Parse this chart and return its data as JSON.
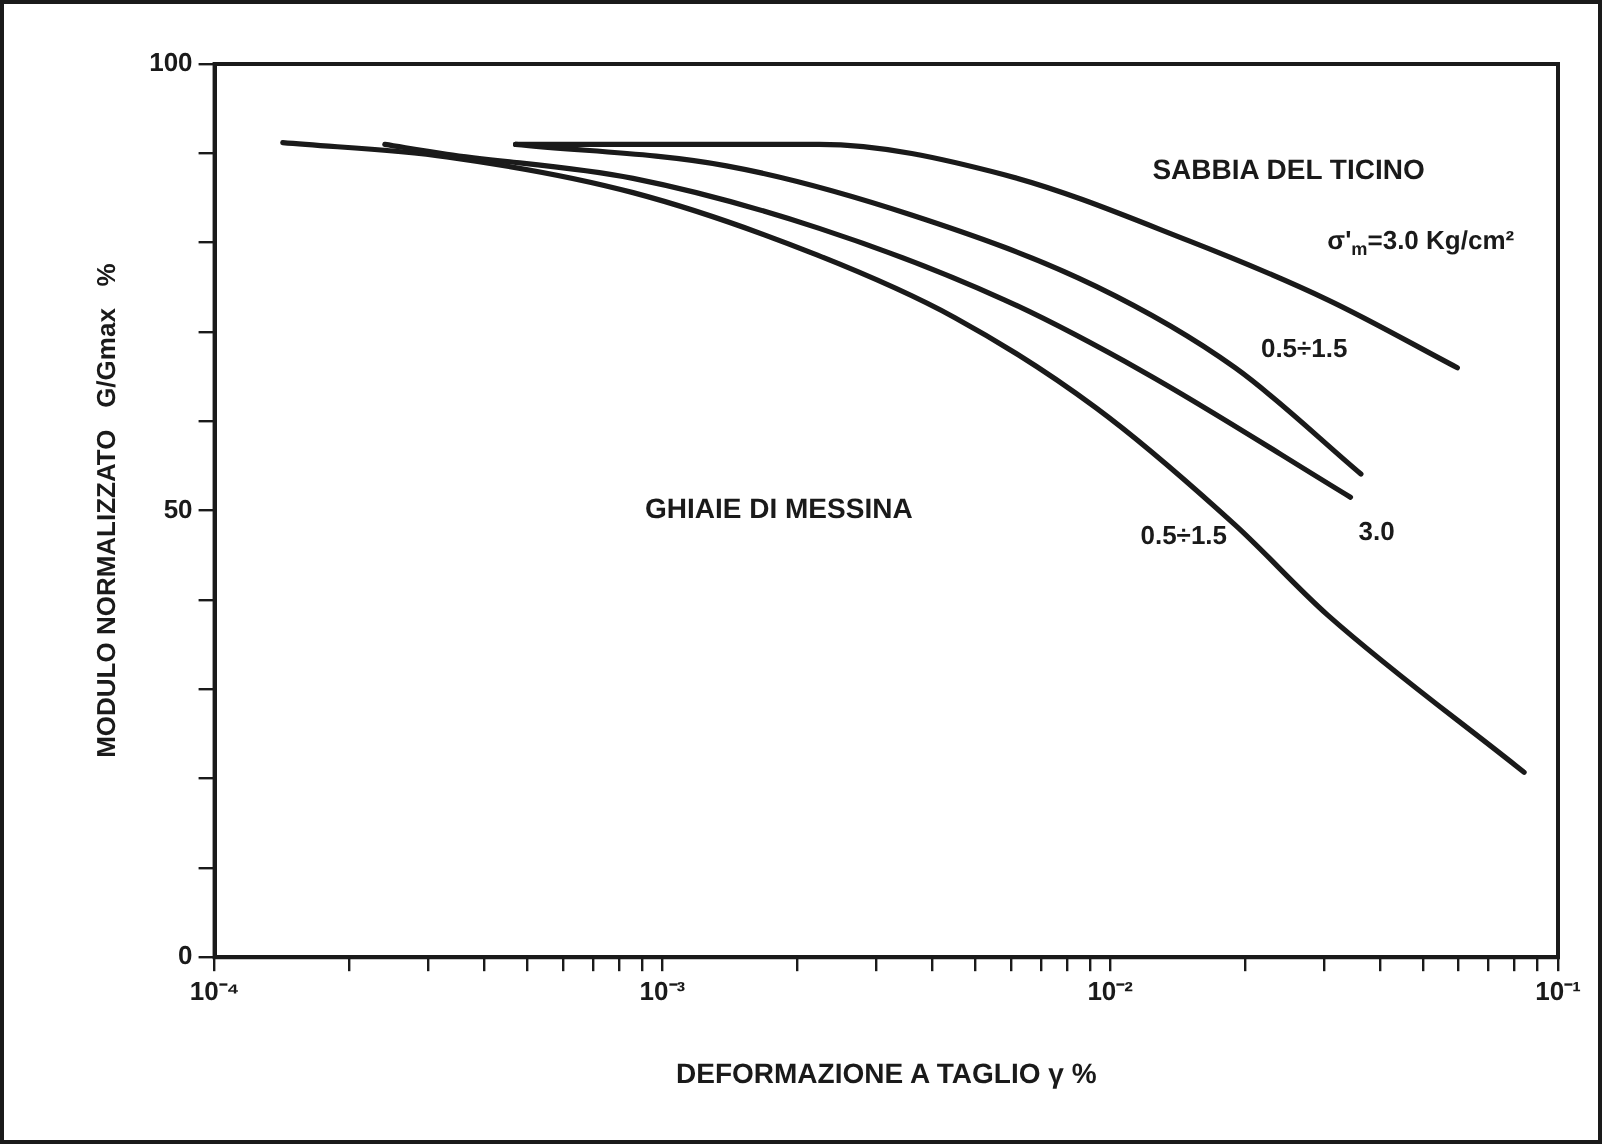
{
  "chart_data": {
    "type": "line",
    "xlabel": "DEFORMAZIONE A TAGLIO γ %",
    "ylabel": "MODULO NORMALIZZATO   G/Gmax   %",
    "log": "x",
    "xlim": [
      0.0001,
      0.1
    ],
    "ylim": [
      0,
      100
    ],
    "xticks": [
      {
        "value": 0.0001,
        "label": "10⁻⁴"
      },
      {
        "value": 0.0002,
        "label": null
      },
      {
        "value": 0.0003,
        "label": null
      },
      {
        "value": 0.0004,
        "label": null
      },
      {
        "value": 0.0005,
        "label": null
      },
      {
        "value": 0.0006,
        "label": null
      },
      {
        "value": 0.0007,
        "label": null
      },
      {
        "value": 0.0008,
        "label": null
      },
      {
        "value": 0.0009,
        "label": null
      },
      {
        "value": 0.001,
        "label": "10⁻³"
      },
      {
        "value": 0.002,
        "label": null
      },
      {
        "value": 0.003,
        "label": null
      },
      {
        "value": 0.004,
        "label": null
      },
      {
        "value": 0.005,
        "label": null
      },
      {
        "value": 0.006,
        "label": null
      },
      {
        "value": 0.007,
        "label": null
      },
      {
        "value": 0.008,
        "label": null
      },
      {
        "value": 0.009,
        "label": null
      },
      {
        "value": 0.01,
        "label": "10⁻²"
      },
      {
        "value": 0.02,
        "label": null
      },
      {
        "value": 0.03,
        "label": null
      },
      {
        "value": 0.04,
        "label": null
      },
      {
        "value": 0.05,
        "label": null
      },
      {
        "value": 0.06,
        "label": null
      },
      {
        "value": 0.07,
        "label": null
      },
      {
        "value": 0.08,
        "label": null
      },
      {
        "value": 0.09,
        "label": null
      },
      {
        "value": 0.1,
        "label": "10⁻¹"
      }
    ],
    "yticks": [
      0,
      {
        "value": 10,
        "label": null
      },
      {
        "value": 20,
        "label": null
      },
      {
        "value": 30,
        "label": null
      },
      {
        "value": 40,
        "label": null
      },
      50,
      {
        "value": 60,
        "label": null
      },
      {
        "value": 70,
        "label": null
      },
      {
        "value": 80,
        "label": null
      },
      {
        "value": 90,
        "label": null
      },
      100
    ],
    "grid": false,
    "legend": false,
    "marker": "none",
    "line_style": "solid",
    "series": [
      {
        "name": "σ'$_{m}$=3.0 Kg/cm²",
        "color": "#1a1a1a",
        "x": [
          0.00047,
          0.00224,
          0.0058,
          0.015,
          0.0306,
          0.0596
        ],
        "values": [
          91,
          91,
          87.6,
          80.2,
          73.6,
          66
        ]
      },
      {
        "name": "0.5÷1.5",
        "color": "#1a1a1a",
        "x": [
          0.00047,
          0.00139,
          0.0036,
          0.0093,
          0.019,
          0.0363
        ],
        "values": [
          91,
          88.6,
          83.1,
          75.1,
          66,
          54.1
        ]
      },
      {
        "name": "3.0",
        "color": "#1a1a1a",
        "x": [
          0.00024,
          0.00033,
          0.00086,
          0.00224,
          0.0058,
          0.0119,
          0.0344
        ],
        "values": [
          91,
          89.9,
          87.2,
          81.6,
          73.6,
          65.5,
          51.5
        ]
      },
      {
        "name": "0.5÷1.5",
        "color": "#1a1a1a",
        "x": [
          0.000142,
          0.00033,
          0.00086,
          0.00222,
          0.0045,
          0.0093,
          0.019,
          0.0306,
          0.084
        ],
        "values": [
          91.2,
          89.6,
          85.6,
          78.6,
          71.6,
          61.5,
          48.4,
          38.3,
          20.7
        ]
      }
    ],
    "annotations": [
      "SABBIA DEL TICINO",
      "GHIAIE DI MESSINA"
    ]
  }
}
